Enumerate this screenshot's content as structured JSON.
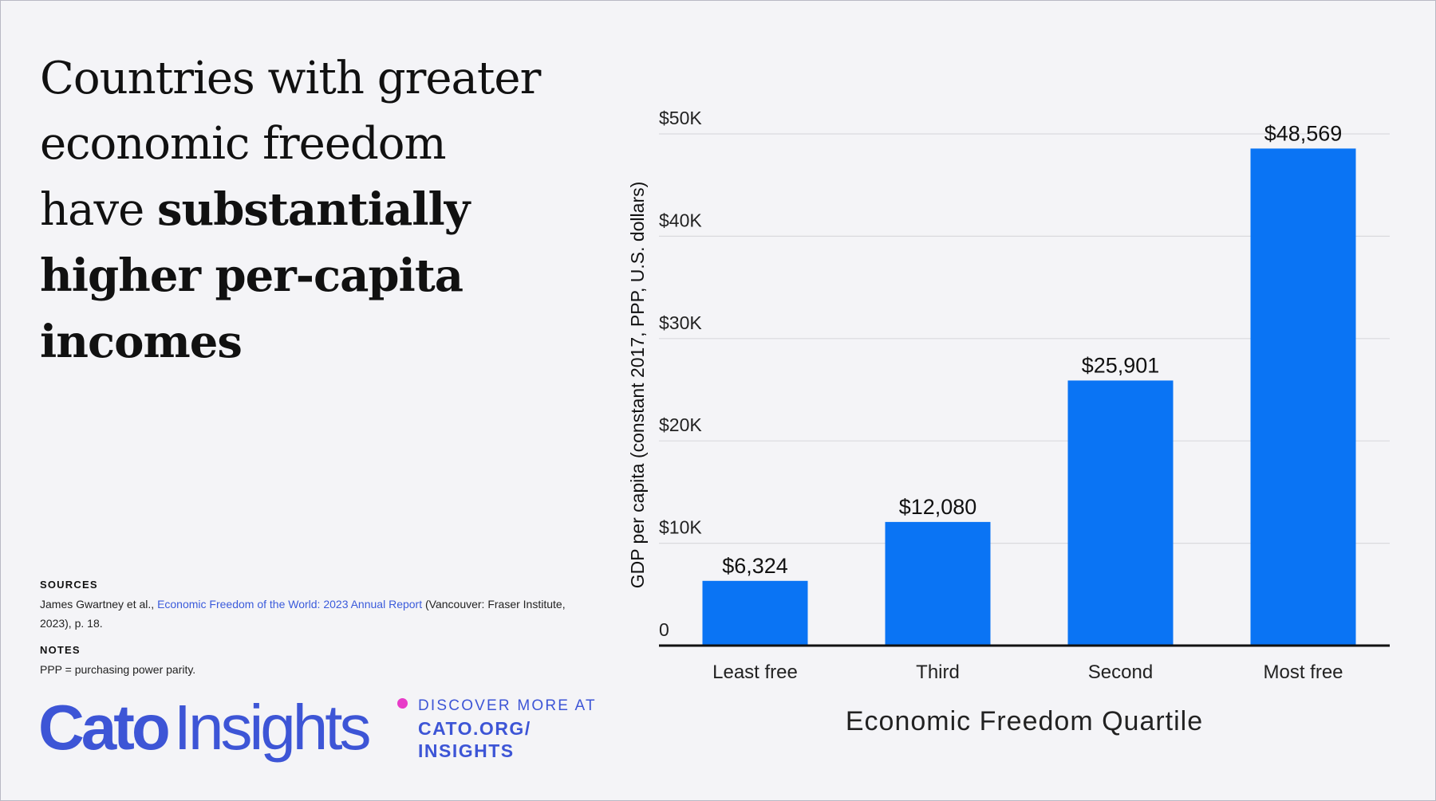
{
  "headline": {
    "plain_line1": "Countries with greater",
    "plain_line2": "economic freedom",
    "plain_line3": "have ",
    "bold_line3": "substantially",
    "bold_line4": "higher per-capita",
    "bold_line5": "incomes"
  },
  "sources": {
    "label": "SOURCES",
    "authors": "James Gwartney et al., ",
    "link_text": "Economic Freedom of the World: 2023 Annual Report",
    "rest": " (Vancouver: Fraser Institute, 2023), p. 18."
  },
  "notes": {
    "label": "NOTES",
    "text": "PPP = purchasing power parity."
  },
  "branding": {
    "logo_cato": "Cato",
    "logo_insights": "Insights",
    "discover": "DISCOVER MORE AT",
    "url_line1": "CATO.ORG/",
    "url_line2": "INSIGHTS"
  },
  "colors": {
    "bar": "#0a74f4",
    "brand": "#3d55d6",
    "accent_dot": "#e83bc8"
  },
  "chart_data": {
    "type": "bar",
    "title": "",
    "categories": [
      "Least free",
      "Third",
      "Second",
      "Most free"
    ],
    "values": [
      6324,
      12080,
      25901,
      48569
    ],
    "value_labels": [
      "$6,324",
      "$12,080",
      "$25,901",
      "$48,569"
    ],
    "xlabel": "Economic Freedom Quartile",
    "ylabel": "GDP per capita (constant 2017, PPP, U.S. dollars)",
    "ylim": [
      0,
      50000
    ],
    "yticks": [
      0,
      10000,
      20000,
      30000,
      40000,
      50000
    ],
    "ytick_labels": [
      "0",
      "$10K",
      "$20K",
      "$30K",
      "$40K",
      "$50K"
    ],
    "grid": true
  }
}
